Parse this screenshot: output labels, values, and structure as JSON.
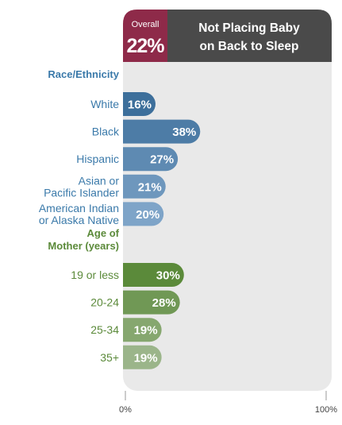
{
  "header": {
    "overall_label": "Overall",
    "overall_value": "22%",
    "title_line1": "Not Placing Baby",
    "title_line2": "on Back to Sleep"
  },
  "colors": {
    "overall_box": "#8e2a49",
    "title_box": "#4a4a4a",
    "panel": "#e9e9e9",
    "race_bar_dark": "#3d6f9b",
    "race_bar_light": "#7ea4c8",
    "age_bar_dark": "#5b8a3a",
    "age_bar_light": "#9bb58a",
    "race_text": "#3b7aaa",
    "age_text": "#5b8a3a"
  },
  "chart_data": {
    "type": "bar",
    "orientation": "horizontal",
    "title": "Not Placing Baby on Back to Sleep",
    "overall": 22,
    "xlim": [
      0,
      100
    ],
    "xticks": [
      "0%",
      "100%"
    ],
    "unit": "%",
    "groups": [
      {
        "name": "Race/Ethnicity",
        "name_lines": [
          "Race/Ethnicity"
        ],
        "color": "blue",
        "categories": [
          {
            "lines": [
              "White"
            ],
            "value": 16,
            "label": "16%"
          },
          {
            "lines": [
              "Black"
            ],
            "value": 38,
            "label": "38%"
          },
          {
            "lines": [
              "Hispanic"
            ],
            "value": 27,
            "label": "27%"
          },
          {
            "lines": [
              "Asian or",
              "Pacific Islander"
            ],
            "value": 21,
            "label": "21%"
          },
          {
            "lines": [
              "American Indian",
              "or Alaska Native"
            ],
            "value": 20,
            "label": "20%"
          }
        ]
      },
      {
        "name": "Age of Mother (years)",
        "name_lines": [
          "Age of",
          "Mother (years)"
        ],
        "color": "green",
        "categories": [
          {
            "lines": [
              "19 or less"
            ],
            "value": 30,
            "label": "30%"
          },
          {
            "lines": [
              "20-24"
            ],
            "value": 28,
            "label": "28%"
          },
          {
            "lines": [
              "25-34"
            ],
            "value": 19,
            "label": "19%"
          },
          {
            "lines": [
              "35+"
            ],
            "value": 19,
            "label": "19%"
          }
        ]
      }
    ]
  }
}
